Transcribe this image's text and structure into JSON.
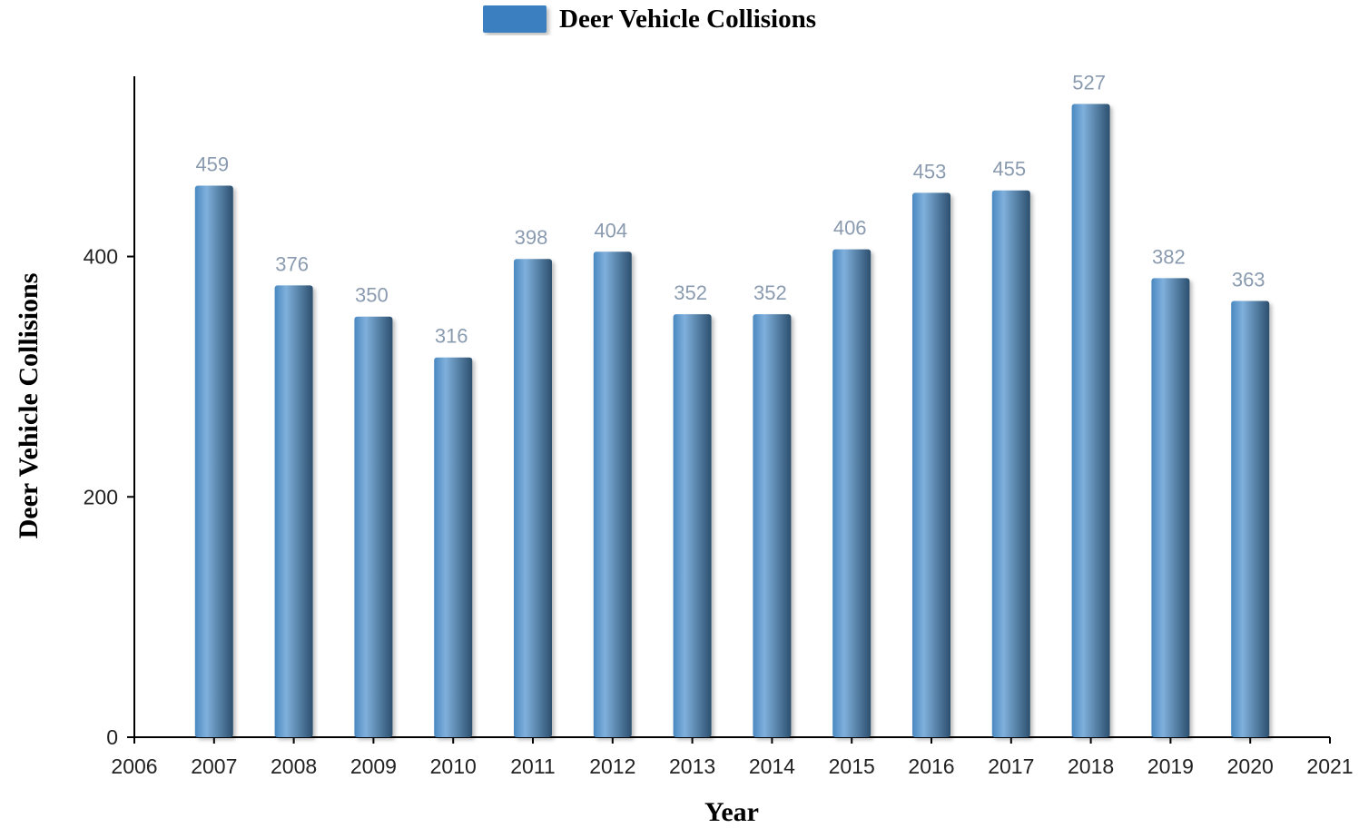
{
  "colors": {
    "bar_light": "#7fb0dc",
    "bar_mid": "#4a88c0",
    "bar_dark": "#2c4f6e",
    "legend_swatch": "#3a7fc0",
    "data_label": "#8a9bb0"
  },
  "chart_data": {
    "type": "bar",
    "legend": {
      "label": "Deer Vehicle Collisions",
      "position": "top-center"
    },
    "xlabel": "Year",
    "ylabel": "Deer Vehicle Collisions",
    "xlim": [
      2006,
      2021
    ],
    "ylim": [
      0,
      550
    ],
    "x_ticks": [
      2006,
      2007,
      2008,
      2009,
      2010,
      2011,
      2012,
      2013,
      2014,
      2015,
      2016,
      2017,
      2018,
      2019,
      2020,
      2021
    ],
    "y_ticks": [
      0,
      200,
      400
    ],
    "grid": false,
    "series": [
      {
        "name": "Deer Vehicle Collisions",
        "x": [
          2007,
          2008,
          2009,
          2010,
          2011,
          2012,
          2013,
          2014,
          2015,
          2016,
          2017,
          2018,
          2019,
          2020
        ],
        "values": [
          459,
          376,
          350,
          316,
          398,
          404,
          352,
          352,
          406,
          453,
          455,
          527,
          382,
          363
        ]
      }
    ]
  }
}
